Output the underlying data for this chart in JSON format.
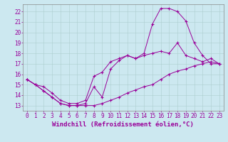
{
  "xlabel": "Windchill (Refroidissement éolien,°C)",
  "xlim": [
    -0.5,
    23.5
  ],
  "ylim": [
    12.5,
    22.7
  ],
  "xticks": [
    0,
    1,
    2,
    3,
    4,
    5,
    6,
    7,
    8,
    9,
    10,
    11,
    12,
    13,
    14,
    15,
    16,
    17,
    18,
    19,
    20,
    21,
    22,
    23
  ],
  "yticks": [
    13,
    14,
    15,
    16,
    17,
    18,
    19,
    20,
    21,
    22
  ],
  "background_color": "#cce8f0",
  "line_color": "#990099",
  "grid_color": "#aacccc",
  "series": [
    {
      "x": [
        0,
        1,
        2,
        3,
        4,
        5,
        6,
        7,
        8,
        9,
        10,
        11,
        12,
        13,
        14,
        15,
        16,
        17,
        18,
        19,
        20,
        21,
        22,
        23
      ],
      "y": [
        15.5,
        15.0,
        14.4,
        13.8,
        13.2,
        13.0,
        13.0,
        13.2,
        14.8,
        13.8,
        16.5,
        17.3,
        17.8,
        17.5,
        18.0,
        20.8,
        22.3,
        22.3,
        22.0,
        21.1,
        19.0,
        17.8,
        17.0,
        17.0
      ]
    },
    {
      "x": [
        0,
        1,
        2,
        3,
        4,
        5,
        6,
        7,
        8,
        9,
        10,
        11,
        12,
        13,
        14,
        15,
        16,
        17,
        18,
        19,
        20,
        21,
        22,
        23
      ],
      "y": [
        15.5,
        15.0,
        14.8,
        14.2,
        13.5,
        13.2,
        13.2,
        13.5,
        15.8,
        16.2,
        17.2,
        17.5,
        17.8,
        17.5,
        17.8,
        18.0,
        18.2,
        18.0,
        19.0,
        17.8,
        17.5,
        17.2,
        17.5,
        17.0
      ]
    },
    {
      "x": [
        0,
        1,
        2,
        3,
        4,
        5,
        6,
        7,
        8,
        9,
        10,
        11,
        12,
        13,
        14,
        15,
        16,
        17,
        18,
        19,
        20,
        21,
        22,
        23
      ],
      "y": [
        15.5,
        15.0,
        14.4,
        13.8,
        13.2,
        13.0,
        13.0,
        13.0,
        13.0,
        13.2,
        13.5,
        13.8,
        14.2,
        14.5,
        14.8,
        15.0,
        15.5,
        16.0,
        16.3,
        16.5,
        16.8,
        17.0,
        17.2,
        17.0
      ]
    }
  ],
  "font_family": "monospace",
  "xlabel_fontsize": 6.5,
  "tick_fontsize": 5.5
}
